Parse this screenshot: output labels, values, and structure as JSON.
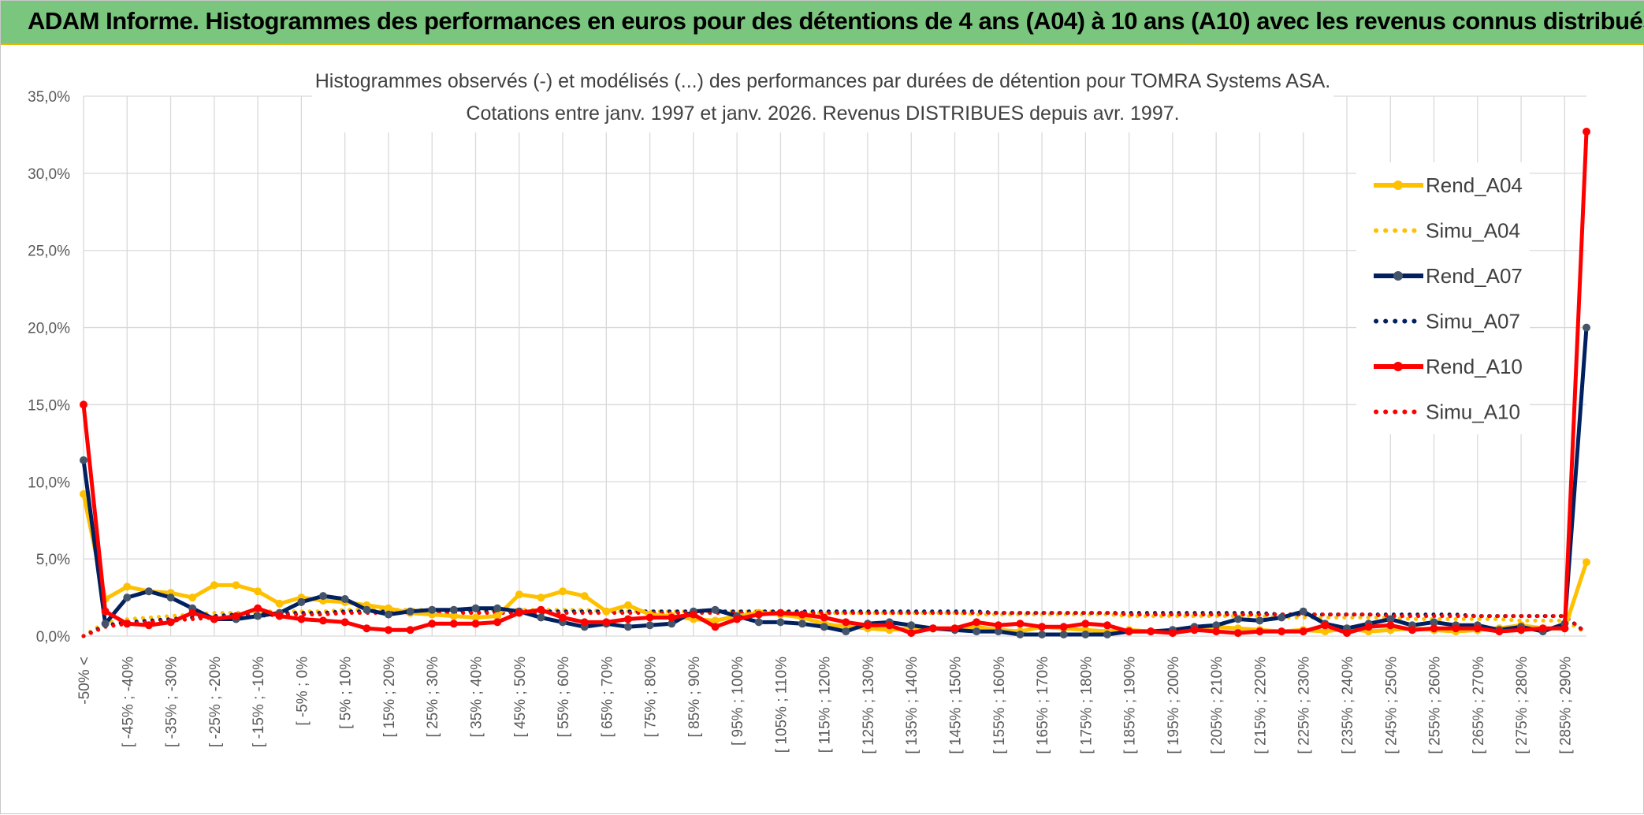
{
  "header": {
    "title": "ADAM Informe. Histogrammes des performances en euros pour des détentions de 4 ans (A04) à 10 ans (A10) avec les revenus connus distribués"
  },
  "chart_data": {
    "type": "line",
    "title": "Histogrammes observés (-) et modélisés (...) des performances par durées de détention pour TOMRA Systems ASA.",
    "subtitle": "Cotations entre janv. 1997 et janv. 2026. Revenus DISTRIBUES depuis avr. 1997.",
    "xlabel": "",
    "ylabel": "",
    "ylim": [
      0,
      35
    ],
    "y_ticks": [
      "0,0%",
      "5,0%",
      "10,0%",
      "15,0%",
      "20,0%",
      "25,0%",
      "30,0%",
      "35,0%"
    ],
    "x_tick_labels": [
      "-50% <",
      "[ -45% ; -40%",
      "[ -35% ; -30%",
      "[ -25% ; -20%",
      "[ -15% ; -10%",
      "[ -5% ; 0%",
      "[ 5% ; 10%",
      "[ 15% ; 20%",
      "[ 25% ; 30%",
      "[ 35% ; 40%",
      "[ 45% ; 50%",
      "[ 55% ; 60%",
      "[ 65% ; 70%",
      "[ 75% ; 80%",
      "[ 85% ; 90%",
      "[ 95% ; 100%",
      "[ 105% ; 110%",
      "[ 115% ; 120%",
      "[ 125% ; 130%",
      "[ 135% ; 140%",
      "[ 145% ; 150%",
      "[ 155% ; 160%",
      "[ 165% ; 170%",
      "[ 175% ; 180%",
      "[ 185% ; 190%",
      "[ 195% ; 200%",
      "[ 205% ; 210%",
      "[ 215% ; 220%",
      "[ 225% ; 230%",
      "[ 235% ; 240%",
      "[ 245% ; 250%",
      "[ 255% ; 260%",
      "[ 265% ; 270%",
      "[ 275% ; 280%",
      "[ 285% ; 290%"
    ],
    "num_points": 70,
    "grid": true,
    "legend_position": "right",
    "series": [
      {
        "name": "Rend_A04",
        "style": "solid",
        "color": "#ffc000",
        "values": [
          9.2,
          2.4,
          3.2,
          2.9,
          2.8,
          2.5,
          3.3,
          3.3,
          2.9,
          2.1,
          2.5,
          2.3,
          2.2,
          2.0,
          1.8,
          1.5,
          1.4,
          1.3,
          1.2,
          1.3,
          2.7,
          2.5,
          2.9,
          2.6,
          1.6,
          2.0,
          1.4,
          1.3,
          1.1,
          1.0,
          1.3,
          1.5,
          1.4,
          1.2,
          0.8,
          0.6,
          0.5,
          0.4,
          0.5,
          0.5,
          0.5,
          0.6,
          0.4,
          0.3,
          0.6,
          0.5,
          0.4,
          0.3,
          0.4,
          0.3,
          0.3,
          0.4,
          0.6,
          0.5,
          0.4,
          0.3,
          0.4,
          0.3,
          0.5,
          0.3,
          0.4,
          0.5,
          0.4,
          0.3,
          0.4,
          0.5,
          0.7,
          0.5,
          0.5,
          4.8
        ]
      },
      {
        "name": "Simu_A04",
        "style": "dotted",
        "color": "#ffc000",
        "values": [
          0.0,
          0.9,
          1.1,
          1.2,
          1.3,
          1.4,
          1.5,
          1.5,
          1.6,
          1.6,
          1.6,
          1.6,
          1.7,
          1.7,
          1.7,
          1.7,
          1.7,
          1.7,
          1.7,
          1.7,
          1.7,
          1.7,
          1.7,
          1.7,
          1.6,
          1.6,
          1.6,
          1.6,
          1.6,
          1.6,
          1.6,
          1.6,
          1.6,
          1.5,
          1.5,
          1.5,
          1.5,
          1.5,
          1.5,
          1.5,
          1.5,
          1.4,
          1.4,
          1.4,
          1.4,
          1.4,
          1.4,
          1.4,
          1.3,
          1.3,
          1.3,
          1.3,
          1.3,
          1.3,
          1.3,
          1.2,
          1.2,
          1.2,
          1.2,
          1.2,
          1.2,
          1.1,
          1.1,
          1.1,
          1.1,
          1.1,
          1.0,
          1.0,
          1.0,
          0.2
        ]
      },
      {
        "name": "Rend_A07",
        "style": "solid",
        "color": "#002060",
        "values": [
          11.4,
          0.8,
          2.5,
          2.9,
          2.5,
          1.8,
          1.1,
          1.1,
          1.3,
          1.5,
          2.2,
          2.6,
          2.4,
          1.7,
          1.4,
          1.6,
          1.7,
          1.7,
          1.8,
          1.8,
          1.6,
          1.2,
          0.9,
          0.6,
          0.8,
          0.6,
          0.7,
          0.8,
          1.6,
          1.7,
          1.3,
          0.9,
          0.9,
          0.8,
          0.6,
          0.3,
          0.8,
          0.9,
          0.7,
          0.5,
          0.4,
          0.3,
          0.3,
          0.1,
          0.1,
          0.1,
          0.1,
          0.1,
          0.3,
          0.3,
          0.4,
          0.6,
          0.7,
          1.1,
          1.0,
          1.2,
          1.6,
          0.8,
          0.5,
          0.8,
          1.1,
          0.7,
          0.9,
          0.7,
          0.7,
          0.4,
          0.6,
          0.3,
          0.8,
          20.0
        ]
      },
      {
        "name": "Simu_A07",
        "style": "dotted",
        "color": "#002060",
        "values": [
          0.0,
          0.7,
          0.9,
          1.0,
          1.1,
          1.2,
          1.3,
          1.4,
          1.4,
          1.5,
          1.5,
          1.5,
          1.6,
          1.6,
          1.6,
          1.6,
          1.6,
          1.6,
          1.6,
          1.6,
          1.6,
          1.6,
          1.6,
          1.6,
          1.6,
          1.6,
          1.6,
          1.6,
          1.6,
          1.6,
          1.6,
          1.6,
          1.6,
          1.6,
          1.6,
          1.6,
          1.6,
          1.6,
          1.6,
          1.6,
          1.6,
          1.6,
          1.5,
          1.5,
          1.5,
          1.5,
          1.5,
          1.5,
          1.5,
          1.5,
          1.5,
          1.5,
          1.5,
          1.5,
          1.5,
          1.4,
          1.4,
          1.4,
          1.4,
          1.4,
          1.4,
          1.4,
          1.4,
          1.4,
          1.3,
          1.3,
          1.3,
          1.3,
          1.3,
          0.2
        ]
      },
      {
        "name": "Rend_A10",
        "style": "solid",
        "color": "#ff0000",
        "values": [
          15.0,
          1.6,
          0.8,
          0.7,
          0.9,
          1.5,
          1.1,
          1.3,
          1.8,
          1.3,
          1.1,
          1.0,
          0.9,
          0.5,
          0.4,
          0.4,
          0.8,
          0.8,
          0.8,
          0.9,
          1.5,
          1.7,
          1.2,
          0.9,
          0.9,
          1.1,
          1.2,
          1.2,
          1.4,
          0.6,
          1.1,
          1.4,
          1.5,
          1.4,
          1.2,
          0.9,
          0.7,
          0.7,
          0.2,
          0.5,
          0.5,
          0.9,
          0.7,
          0.8,
          0.6,
          0.6,
          0.8,
          0.7,
          0.3,
          0.3,
          0.2,
          0.4,
          0.3,
          0.2,
          0.3,
          0.3,
          0.3,
          0.7,
          0.2,
          0.6,
          0.7,
          0.4,
          0.5,
          0.5,
          0.5,
          0.3,
          0.4,
          0.5,
          0.5,
          32.7
        ]
      },
      {
        "name": "Simu_A10",
        "style": "dotted",
        "color": "#ff0000",
        "values": [
          0.0,
          0.6,
          0.8,
          0.9,
          1.0,
          1.1,
          1.2,
          1.3,
          1.3,
          1.4,
          1.4,
          1.4,
          1.5,
          1.5,
          1.5,
          1.5,
          1.5,
          1.5,
          1.5,
          1.5,
          1.5,
          1.5,
          1.5,
          1.5,
          1.5,
          1.5,
          1.5,
          1.5,
          1.5,
          1.5,
          1.5,
          1.5,
          1.5,
          1.5,
          1.5,
          1.5,
          1.5,
          1.5,
          1.5,
          1.5,
          1.5,
          1.5,
          1.5,
          1.5,
          1.5,
          1.5,
          1.5,
          1.5,
          1.4,
          1.4,
          1.4,
          1.4,
          1.4,
          1.4,
          1.4,
          1.4,
          1.4,
          1.4,
          1.4,
          1.4,
          1.3,
          1.3,
          1.3,
          1.3,
          1.3,
          1.3,
          1.3,
          1.3,
          1.3,
          0.2
        ]
      }
    ]
  }
}
